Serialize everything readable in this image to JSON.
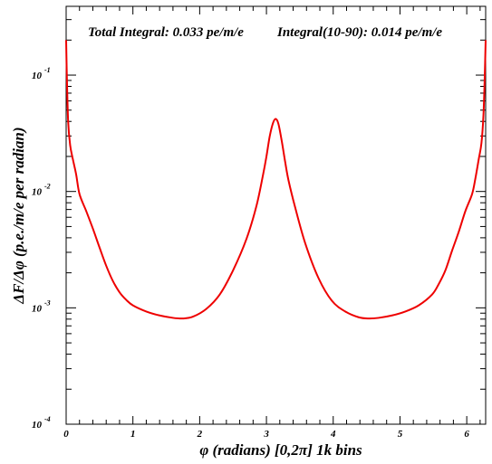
{
  "chart_data": {
    "type": "line",
    "title": "",
    "xlabel": "φ (radians) [0,2π] 1k bins",
    "ylabel": "ΔF/Δφ (p.e./m/e per radian)",
    "annotations": {
      "total_integral": "Total Integral: 0.033 pe/m/e",
      "integral_10_90": "Integral(10-90): 0.014 pe/m/e"
    },
    "xlim": [
      0,
      6.2832
    ],
    "ylim": [
      0.0001,
      0.39
    ],
    "yscale": "log",
    "grid": false,
    "legend": "none",
    "x_ticks": [
      "0",
      "1",
      "2",
      "3",
      "4",
      "5",
      "6"
    ],
    "y_ticks": [
      {
        "base": "10",
        "exp": "-4"
      },
      {
        "base": "10",
        "exp": "-3"
      },
      {
        "base": "10",
        "exp": "-2"
      },
      {
        "base": "10",
        "exp": "-1"
      }
    ],
    "series": [
      {
        "color": "#ee0000",
        "x": [
          0.0,
          0.01,
          0.03,
          0.06,
          0.1,
          0.15,
          0.2,
          0.3,
          0.4,
          0.5,
          0.6,
          0.7,
          0.8,
          0.9,
          1.0,
          1.2,
          1.4,
          1.6,
          1.75,
          1.9,
          2.1,
          2.3,
          2.5,
          2.7,
          2.85,
          2.95,
          3.0,
          3.05,
          3.1,
          3.14,
          3.18,
          3.23,
          3.28,
          3.33,
          3.43,
          3.58,
          3.78,
          3.98,
          4.18,
          4.38,
          4.53,
          4.68,
          4.88,
          5.08,
          5.28,
          5.48,
          5.58,
          5.68,
          5.78,
          5.88,
          5.98,
          6.08,
          6.13,
          6.18,
          6.22,
          6.25,
          6.27,
          6.2832
        ],
        "y": [
          0.2,
          0.1,
          0.04,
          0.025,
          0.019,
          0.014,
          0.0095,
          0.0068,
          0.0048,
          0.0033,
          0.0023,
          0.0017,
          0.00136,
          0.00117,
          0.00105,
          0.00093,
          0.00086,
          0.00082,
          0.00081,
          0.00084,
          0.00098,
          0.0013,
          0.0021,
          0.0039,
          0.0075,
          0.014,
          0.02,
          0.03,
          0.039,
          0.042,
          0.038,
          0.027,
          0.018,
          0.0125,
          0.0073,
          0.0036,
          0.0018,
          0.00115,
          0.00093,
          0.00083,
          0.00081,
          0.00082,
          0.00086,
          0.00093,
          0.00105,
          0.0013,
          0.0016,
          0.0021,
          0.0031,
          0.0045,
          0.0068,
          0.0095,
          0.013,
          0.019,
          0.026,
          0.045,
          0.1,
          0.2
        ]
      }
    ]
  }
}
